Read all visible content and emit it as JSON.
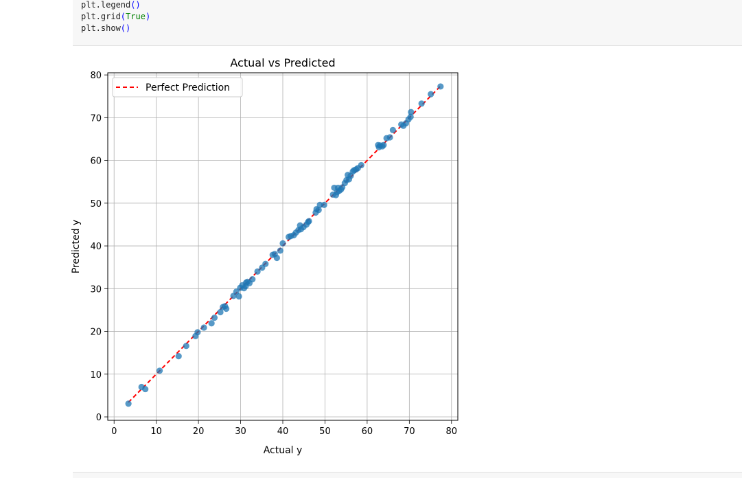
{
  "code": {
    "lines": [
      {
        "prefix": "plt.legend",
        "arg": "",
        "suffix": ""
      },
      {
        "prefix": "plt.grid",
        "arg": "True",
        "suffix": ""
      },
      {
        "prefix": "plt.show",
        "arg": "",
        "suffix": ""
      }
    ]
  },
  "chart_data": {
    "type": "scatter",
    "title": "Actual vs Predicted",
    "xlabel": "Actual y",
    "ylabel": "Predicted y",
    "xlim": [
      -1.5,
      81.5
    ],
    "ylim": [
      -0.8,
      80.5
    ],
    "xticks": [
      0,
      10,
      20,
      30,
      40,
      50,
      60,
      70,
      80
    ],
    "yticks": [
      0,
      10,
      20,
      30,
      40,
      50,
      60,
      70,
      80
    ],
    "grid": true,
    "legend_position": "top-left",
    "series": [
      {
        "kind": "scatter",
        "color": "#1f77b4",
        "points": [
          [
            3.4,
            3.1
          ],
          [
            6.5,
            7.0
          ],
          [
            7.4,
            6.5
          ],
          [
            10.8,
            10.8
          ],
          [
            15.3,
            14.2
          ],
          [
            17.1,
            16.6
          ],
          [
            19.3,
            18.9
          ],
          [
            19.8,
            19.8
          ],
          [
            21.3,
            20.9
          ],
          [
            23.1,
            21.9
          ],
          [
            23.8,
            23.2
          ],
          [
            25.2,
            24.5
          ],
          [
            25.8,
            25.7
          ],
          [
            26.3,
            25.9
          ],
          [
            26.6,
            25.3
          ],
          [
            28.3,
            28.3
          ],
          [
            29.0,
            29.3
          ],
          [
            29.6,
            28.2
          ],
          [
            29.9,
            30.2
          ],
          [
            30.4,
            30.8
          ],
          [
            30.8,
            30.1
          ],
          [
            31.2,
            30.6
          ],
          [
            31.3,
            31.4
          ],
          [
            31.6,
            31.6
          ],
          [
            32.1,
            31.3
          ],
          [
            32.8,
            32.2
          ],
          [
            34.0,
            34.0
          ],
          [
            35.1,
            34.9
          ],
          [
            35.9,
            35.8
          ],
          [
            37.6,
            37.9
          ],
          [
            38.1,
            38.1
          ],
          [
            38.6,
            37.2
          ],
          [
            39.4,
            38.9
          ],
          [
            40.0,
            40.6
          ],
          [
            41.4,
            42.1
          ],
          [
            41.9,
            42.3
          ],
          [
            42.6,
            42.5
          ],
          [
            43.1,
            43.1
          ],
          [
            43.7,
            43.7
          ],
          [
            44.1,
            44.8
          ],
          [
            44.3,
            43.9
          ],
          [
            44.9,
            44.4
          ],
          [
            45.6,
            45.0
          ],
          [
            46.0,
            45.6
          ],
          [
            46.2,
            45.8
          ],
          [
            47.8,
            47.8
          ],
          [
            48.0,
            48.6
          ],
          [
            48.5,
            48.4
          ],
          [
            48.8,
            49.6
          ],
          [
            49.8,
            49.6
          ],
          [
            51.9,
            52.0
          ],
          [
            52.2,
            53.6
          ],
          [
            52.6,
            51.9
          ],
          [
            52.9,
            52.6
          ],
          [
            53.1,
            53.6
          ],
          [
            53.4,
            52.9
          ],
          [
            53.8,
            53.2
          ],
          [
            54.1,
            53.7
          ],
          [
            54.7,
            54.7
          ],
          [
            55.1,
            55.4
          ],
          [
            55.4,
            56.6
          ],
          [
            55.7,
            55.6
          ],
          [
            56.1,
            56.4
          ],
          [
            56.6,
            57.4
          ],
          [
            56.9,
            57.7
          ],
          [
            57.4,
            57.9
          ],
          [
            57.8,
            58.2
          ],
          [
            58.6,
            58.9
          ],
          [
            62.6,
            63.6
          ],
          [
            62.8,
            63.1
          ],
          [
            63.1,
            63.5
          ],
          [
            63.6,
            63.3
          ],
          [
            63.9,
            63.6
          ],
          [
            64.6,
            65.2
          ],
          [
            65.4,
            65.4
          ],
          [
            66.1,
            67.1
          ],
          [
            68.1,
            68.4
          ],
          [
            68.6,
            68.1
          ],
          [
            69.2,
            68.7
          ],
          [
            69.8,
            69.6
          ],
          [
            70.3,
            70.2
          ],
          [
            70.4,
            71.3
          ],
          [
            72.9,
            73.3
          ],
          [
            75.1,
            75.5
          ],
          [
            77.4,
            77.3
          ]
        ]
      },
      {
        "kind": "line",
        "name": "Perfect Prediction",
        "color": "#ff0000",
        "style": "dashed",
        "x": [
          3.4,
          77.4
        ],
        "y": [
          3.4,
          77.4
        ]
      }
    ]
  }
}
